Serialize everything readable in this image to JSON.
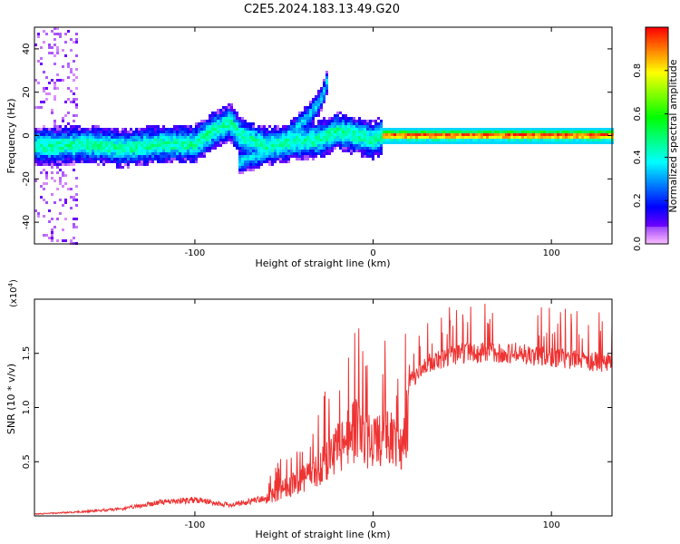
{
  "title": "C2E5.2024.183.13.49.G20",
  "chart_data": [
    {
      "type": "heatmap",
      "xlabel": "Height of straight line (km)",
      "ylabel": "Frequency (Hz)",
      "xlim": [
        -190,
        134
      ],
      "ylim": [
        -50,
        50
      ],
      "x_ticks": [
        -100,
        0,
        100
      ],
      "y_ticks": [
        -40,
        -20,
        0,
        20,
        40
      ],
      "colorbar": {
        "label": "Normalized spectral amplitude",
        "range": [
          0,
          1
        ],
        "ticks": [
          0.0,
          0.2,
          0.4,
          0.6,
          0.8
        ]
      },
      "ridge_main": [
        {
          "x": -180,
          "y": -5
        },
        {
          "x": -160,
          "y": -4
        },
        {
          "x": -140,
          "y": -6
        },
        {
          "x": -120,
          "y": -4
        },
        {
          "x": -100,
          "y": -4
        },
        {
          "x": -90,
          "y": 2
        },
        {
          "x": -80,
          "y": 6
        },
        {
          "x": -75,
          "y": 0
        },
        {
          "x": -60,
          "y": -5
        },
        {
          "x": -45,
          "y": -3
        },
        {
          "x": -30,
          "y": -2
        },
        {
          "x": -20,
          "y": 2
        },
        {
          "x": -10,
          "y": 0
        },
        {
          "x": 0,
          "y": -2
        },
        {
          "x": 5,
          "y": 0
        },
        {
          "x": 30,
          "y": 0
        },
        {
          "x": 60,
          "y": 0
        },
        {
          "x": 100,
          "y": 0
        },
        {
          "x": 134,
          "y": 0
        }
      ],
      "ridge_branch": [
        {
          "x": -75,
          "y": -12
        },
        {
          "x": -60,
          "y": -8
        },
        {
          "x": -45,
          "y": 2
        },
        {
          "x": -35,
          "y": 10
        },
        {
          "x": -28,
          "y": 18
        },
        {
          "x": -25,
          "y": 28
        }
      ]
    },
    {
      "type": "line",
      "xlabel": "Height of straight line (km)",
      "ylabel": "SNR (10 * v/v)",
      "y_multiplier": "(x10",
      "y_multiplier_exp": "4",
      "y_multiplier_close": ")",
      "xlim": [
        -190,
        134
      ],
      "ylim": [
        0,
        2.0
      ],
      "x_ticks": [
        -100,
        0,
        100
      ],
      "y_ticks": [
        0.5,
        1.0,
        1.5
      ],
      "series_color": "#ee3333",
      "envelope": [
        {
          "x": -190,
          "y": 0.02
        },
        {
          "x": -160,
          "y": 0.05
        },
        {
          "x": -140,
          "y": 0.08
        },
        {
          "x": -120,
          "y": 0.15
        },
        {
          "x": -100,
          "y": 0.18
        },
        {
          "x": -80,
          "y": 0.12
        },
        {
          "x": -60,
          "y": 0.2
        },
        {
          "x": -50,
          "y": 0.35
        },
        {
          "x": -40,
          "y": 0.45
        },
        {
          "x": -30,
          "y": 0.6
        },
        {
          "x": -20,
          "y": 0.85
        },
        {
          "x": -10,
          "y": 1.1
        },
        {
          "x": 0,
          "y": 0.9
        },
        {
          "x": 10,
          "y": 1.0
        },
        {
          "x": 15,
          "y": 0.8
        },
        {
          "x": 20,
          "y": 1.3
        },
        {
          "x": 30,
          "y": 1.5
        },
        {
          "x": 50,
          "y": 1.6
        },
        {
          "x": 80,
          "y": 1.6
        },
        {
          "x": 100,
          "y": 1.55
        },
        {
          "x": 134,
          "y": 1.5
        }
      ]
    }
  ]
}
